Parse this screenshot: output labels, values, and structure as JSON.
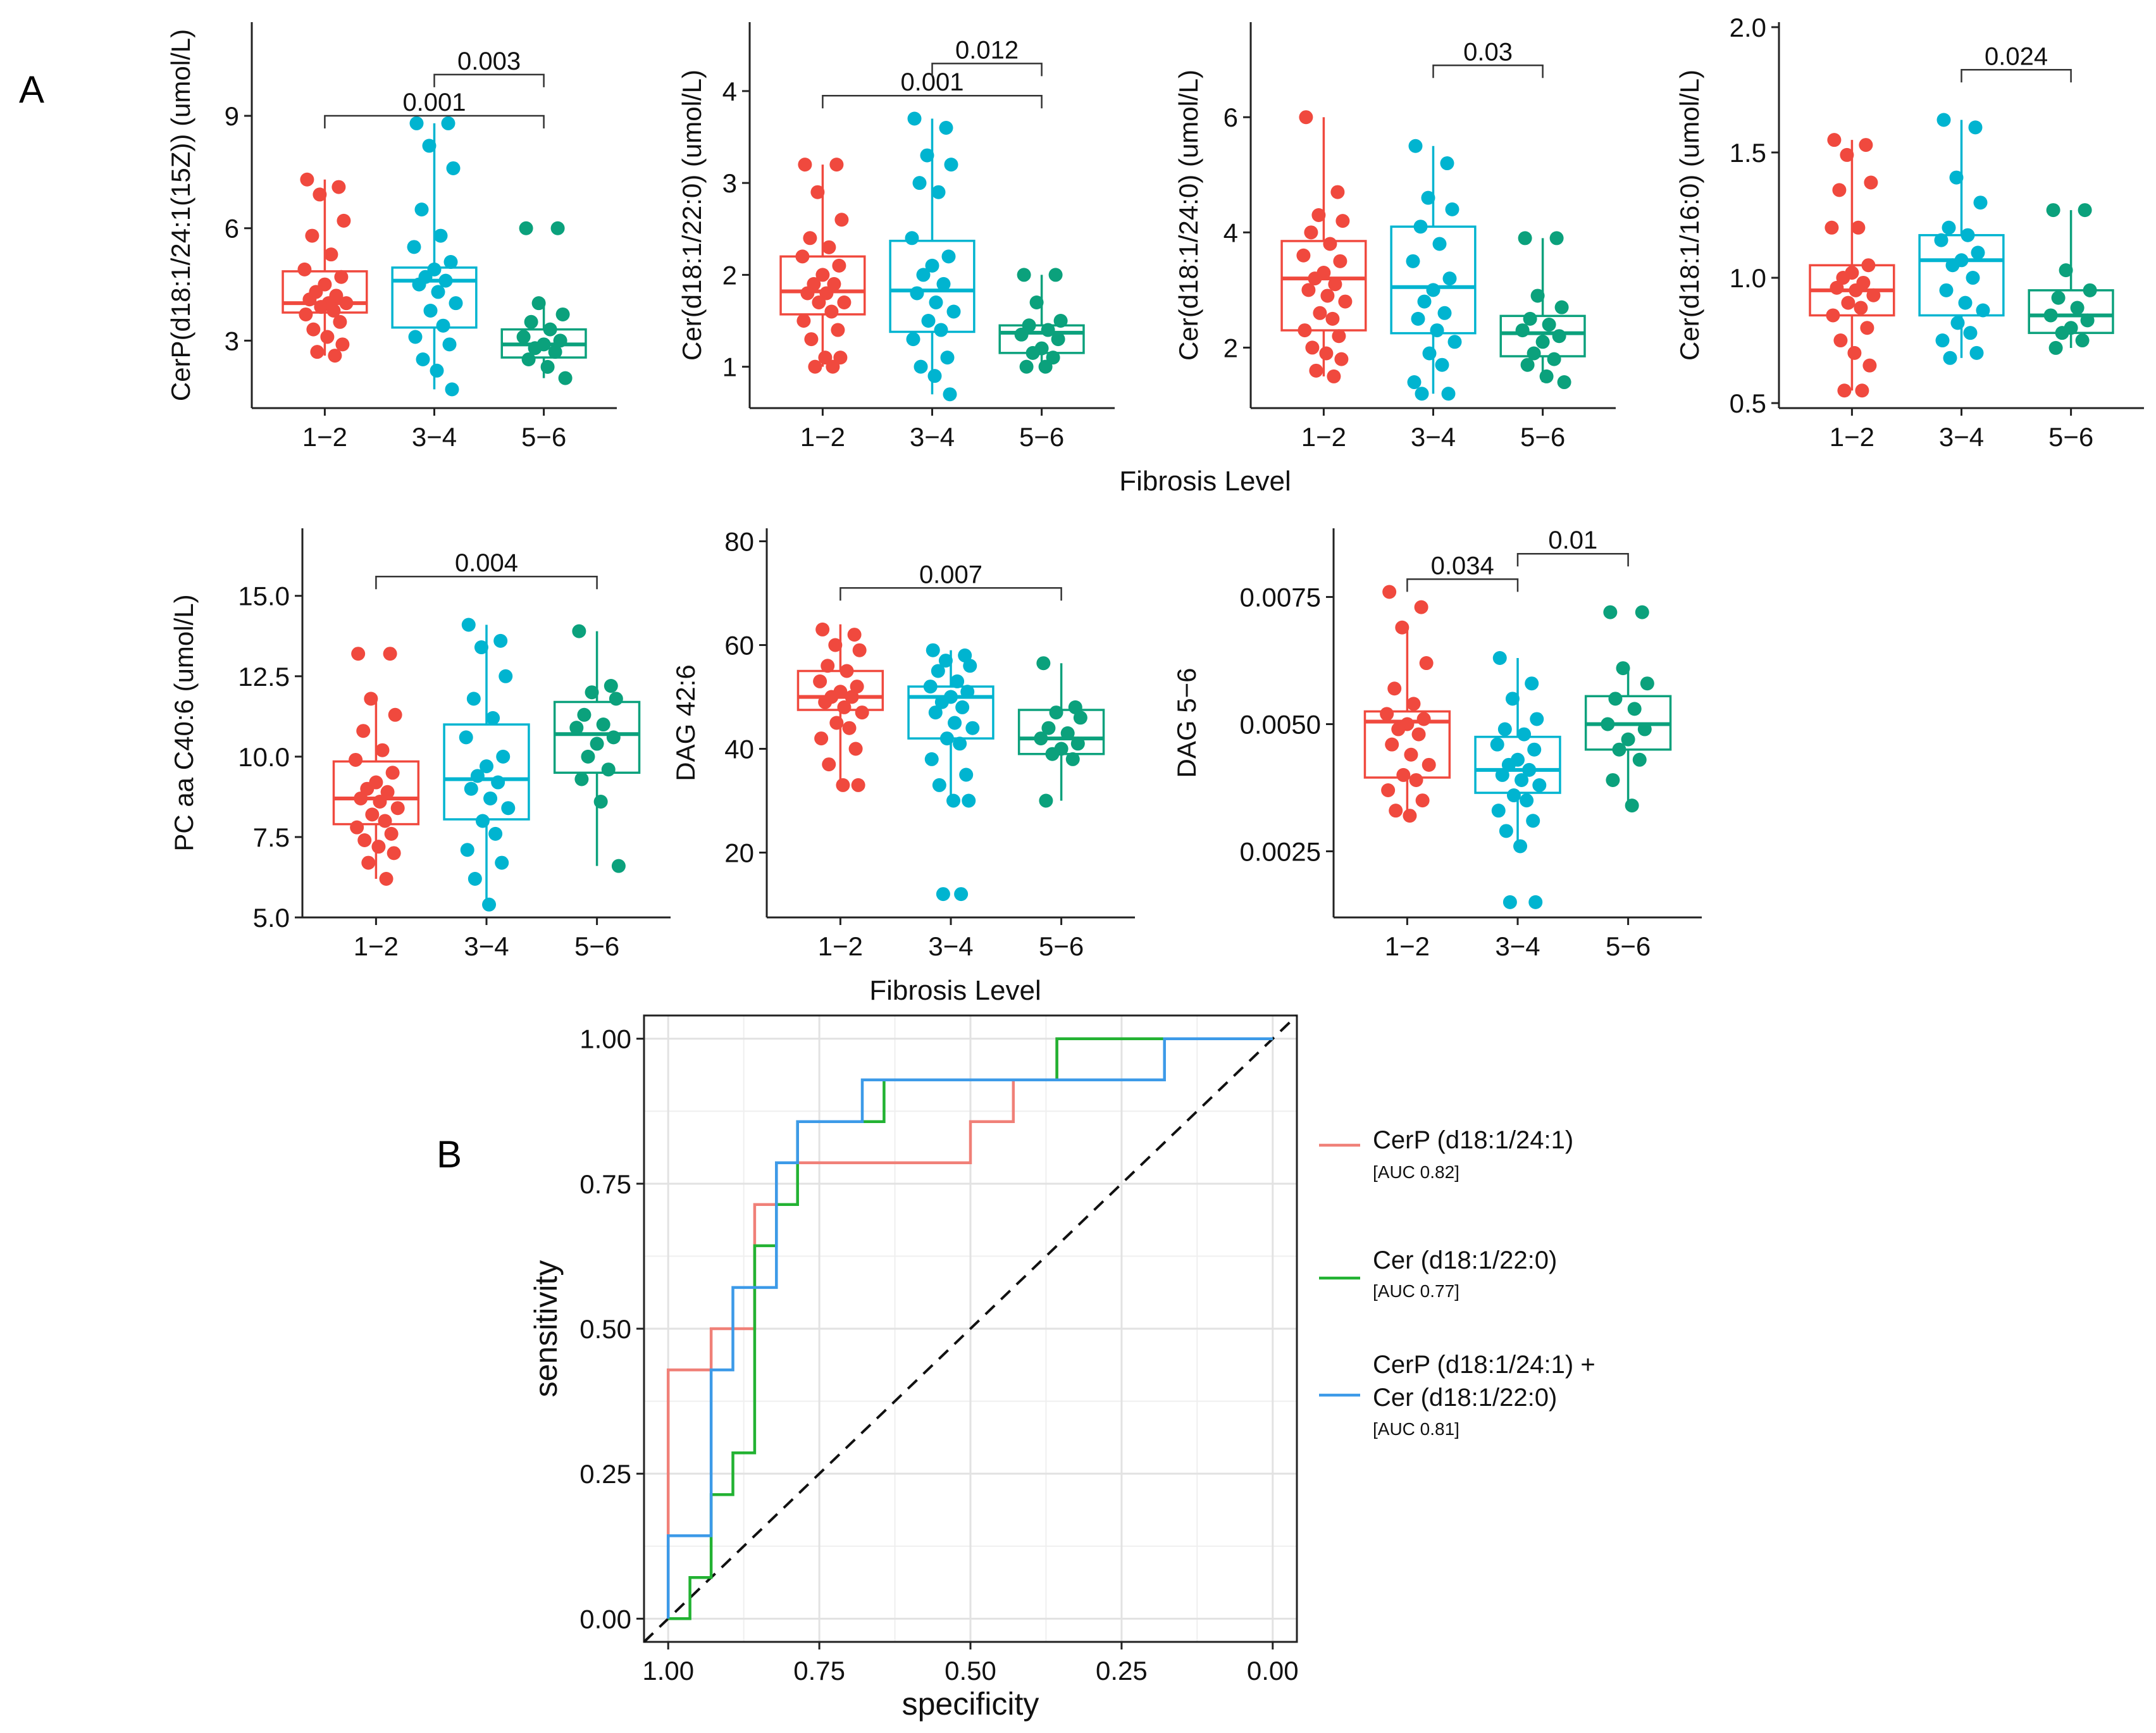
{
  "figure": {
    "panel_a_label": "A",
    "panel_b_label": "B"
  },
  "colors": {
    "group_1_2": "#F0493E",
    "group_3_4": "#00B4D0",
    "group_5_6": "#0BA17C",
    "roc_cerp": "#F08078",
    "roc_cer": "#22B232",
    "roc_combined": "#3C9AE8"
  },
  "chart_data": [
    {
      "type": "box",
      "ylabel": "CerP(d18:1/24:1(15Z)) (umol/L)",
      "xlabel": "",
      "categories": [
        "1−2",
        "3−4",
        "5−6"
      ],
      "ylim": [
        1.2,
        11.5
      ],
      "yticks": [
        3,
        6,
        9
      ],
      "ytick_labels": [
        "3",
        "6",
        "9"
      ],
      "boxes": [
        {
          "min": 2.6,
          "q1": 3.75,
          "median": 4.0,
          "q3": 4.85,
          "max": 7.3
        },
        {
          "min": 1.7,
          "q1": 3.35,
          "median": 4.6,
          "q3": 4.95,
          "max": 8.8
        },
        {
          "min": 2.0,
          "q1": 2.55,
          "median": 2.9,
          "q3": 3.3,
          "max": 4.1
        }
      ],
      "points": [
        [
          7.3,
          7.1,
          6.9,
          6.2,
          5.8,
          5.3,
          4.9,
          4.7,
          4.5,
          4.3,
          4.2,
          4.1,
          4.0,
          4.0,
          3.9,
          3.8,
          3.7,
          3.5,
          3.3,
          3.1,
          2.9,
          2.7,
          2.6
        ],
        [
          8.8,
          8.8,
          8.2,
          7.6,
          6.5,
          5.8,
          5.5,
          5.1,
          4.9,
          4.7,
          4.6,
          4.5,
          4.3,
          4.0,
          3.8,
          3.4,
          3.1,
          2.9,
          2.5,
          2.2,
          1.7
        ],
        [
          6.0,
          6.0,
          4.0,
          3.7,
          3.5,
          3.3,
          3.1,
          3.0,
          2.9,
          2.8,
          2.7,
          2.5,
          2.3,
          2.0
        ]
      ],
      "comparisons": [
        {
          "from": 0,
          "to": 2,
          "label": "0.001",
          "y": 9.0
        },
        {
          "from": 1,
          "to": 2,
          "label": "0.003",
          "y": 10.1
        }
      ]
    },
    {
      "type": "box",
      "ylabel": "Cer(d18:1/22:0) (umol/L)",
      "xlabel": "",
      "categories": [
        "1−2",
        "3−4",
        "5−6"
      ],
      "ylim": [
        0.55,
        4.75
      ],
      "yticks": [
        1,
        2,
        3,
        4
      ],
      "ytick_labels": [
        "1",
        "2",
        "3",
        "4"
      ],
      "boxes": [
        {
          "min": 1.0,
          "q1": 1.57,
          "median": 1.82,
          "q3": 2.2,
          "max": 3.2
        },
        {
          "min": 0.7,
          "q1": 1.38,
          "median": 1.83,
          "q3": 2.37,
          "max": 3.7
        },
        {
          "min": 1.0,
          "q1": 1.15,
          "median": 1.37,
          "q3": 1.45,
          "max": 2.0
        }
      ],
      "points": [
        [
          3.2,
          3.2,
          2.9,
          2.6,
          2.4,
          2.3,
          2.2,
          2.1,
          2.0,
          1.9,
          1.9,
          1.8,
          1.8,
          1.7,
          1.7,
          1.6,
          1.5,
          1.4,
          1.3,
          1.1,
          1.1,
          1.0,
          1.0
        ],
        [
          3.7,
          3.6,
          3.3,
          3.2,
          3.0,
          2.9,
          2.4,
          2.2,
          2.1,
          2.0,
          1.9,
          1.8,
          1.7,
          1.6,
          1.5,
          1.4,
          1.3,
          1.1,
          1.0,
          0.9,
          0.7
        ],
        [
          2.0,
          2.0,
          1.7,
          1.5,
          1.45,
          1.4,
          1.35,
          1.3,
          1.2,
          1.15,
          1.1,
          1.0,
          1.0
        ]
      ],
      "comparisons": [
        {
          "from": 0,
          "to": 2,
          "label": "0.001",
          "y": 3.95
        },
        {
          "from": 1,
          "to": 2,
          "label": "0.012",
          "y": 4.3
        }
      ]
    },
    {
      "type": "box",
      "ylabel": "Cer(d18:1/24:0) (umol/L)",
      "xlabel": "",
      "categories": [
        "1−2",
        "3−4",
        "5−6"
      ],
      "ylim": [
        0.95,
        7.65
      ],
      "yticks": [
        2,
        4,
        6
      ],
      "ytick_labels": [
        "2",
        "4",
        "6"
      ],
      "boxes": [
        {
          "min": 1.5,
          "q1": 2.3,
          "median": 3.2,
          "q3": 3.85,
          "max": 6.0
        },
        {
          "min": 1.2,
          "q1": 2.25,
          "median": 3.05,
          "q3": 4.1,
          "max": 5.5
        },
        {
          "min": 1.4,
          "q1": 1.85,
          "median": 2.25,
          "q3": 2.55,
          "max": 3.9
        }
      ],
      "points": [
        [
          6.0,
          4.7,
          4.3,
          4.2,
          4.0,
          3.8,
          3.6,
          3.5,
          3.3,
          3.2,
          3.1,
          3.0,
          2.9,
          2.8,
          2.6,
          2.5,
          2.3,
          2.2,
          2.0,
          1.9,
          1.8,
          1.6,
          1.5
        ],
        [
          5.5,
          5.2,
          4.6,
          4.4,
          4.1,
          3.8,
          3.5,
          3.2,
          3.0,
          2.8,
          2.6,
          2.5,
          2.3,
          2.1,
          1.9,
          1.7,
          1.4,
          1.2,
          1.2
        ],
        [
          3.9,
          3.9,
          2.9,
          2.7,
          2.5,
          2.4,
          2.3,
          2.2,
          2.1,
          1.9,
          1.8,
          1.7,
          1.5,
          1.4
        ]
      ],
      "comparisons": [
        {
          "from": 1,
          "to": 2,
          "label": "0.03",
          "y": 6.9
        }
      ]
    },
    {
      "type": "box",
      "ylabel": "Cer(d18:1/16:0) (umol/L)",
      "xlabel": "",
      "categories": [
        "1−2",
        "3−4",
        "5−6"
      ],
      "ylim": [
        0.48,
        2.02
      ],
      "yticks": [
        0.5,
        1.0,
        1.5,
        2.0
      ],
      "ytick_labels": [
        "0.5",
        "1.0",
        "1.5",
        "2.0"
      ],
      "boxes": [
        {
          "min": 0.55,
          "q1": 0.85,
          "median": 0.95,
          "q3": 1.05,
          "max": 1.55
        },
        {
          "min": 0.68,
          "q1": 0.85,
          "median": 1.07,
          "q3": 1.17,
          "max": 1.63
        },
        {
          "min": 0.72,
          "q1": 0.78,
          "median": 0.85,
          "q3": 0.95,
          "max": 1.27
        }
      ],
      "points": [
        [
          1.55,
          1.53,
          1.49,
          1.38,
          1.35,
          1.2,
          1.2,
          1.05,
          1.02,
          1.0,
          0.98,
          0.96,
          0.95,
          0.93,
          0.9,
          0.88,
          0.85,
          0.8,
          0.75,
          0.7,
          0.65,
          0.55,
          0.55
        ],
        [
          1.63,
          1.6,
          1.4,
          1.3,
          1.2,
          1.17,
          1.15,
          1.1,
          1.07,
          1.05,
          1.0,
          0.95,
          0.9,
          0.87,
          0.82,
          0.78,
          0.75,
          0.7,
          0.68
        ],
        [
          1.27,
          1.27,
          1.03,
          0.95,
          0.92,
          0.88,
          0.85,
          0.83,
          0.8,
          0.78,
          0.75,
          0.72
        ]
      ],
      "comparisons": [
        {
          "from": 1,
          "to": 2,
          "label": "0.024",
          "y": 1.83
        }
      ]
    },
    {
      "type": "box",
      "ylabel": "PC aa C40:6 (umol/L)",
      "xlabel": "",
      "categories": [
        "1−2",
        "3−4",
        "5−6"
      ],
      "ylim": [
        5.0,
        17.1
      ],
      "yticks": [
        5.0,
        7.5,
        10.0,
        12.5,
        15.0
      ],
      "ytick_labels": [
        "5.0",
        "7.5",
        "10.0",
        "12.5",
        "15.0"
      ],
      "boxes": [
        {
          "min": 6.2,
          "q1": 7.9,
          "median": 8.7,
          "q3": 9.85,
          "max": 11.9
        },
        {
          "min": 5.4,
          "q1": 8.05,
          "median": 9.3,
          "q3": 11.0,
          "max": 14.1
        },
        {
          "min": 6.6,
          "q1": 9.5,
          "median": 10.7,
          "q3": 11.7,
          "max": 13.9
        }
      ],
      "points": [
        [
          13.2,
          13.2,
          11.8,
          11.3,
          10.8,
          10.2,
          9.9,
          9.5,
          9.2,
          9.0,
          8.9,
          8.7,
          8.6,
          8.4,
          8.2,
          8.0,
          7.8,
          7.6,
          7.4,
          7.2,
          7.0,
          6.7,
          6.2
        ],
        [
          14.1,
          13.6,
          13.4,
          12.5,
          11.8,
          11.2,
          10.6,
          10.0,
          9.7,
          9.4,
          9.2,
          9.0,
          8.7,
          8.4,
          8.0,
          7.6,
          7.1,
          6.7,
          6.2,
          5.4
        ],
        [
          13.9,
          12.2,
          12.0,
          11.8,
          11.3,
          11.0,
          10.9,
          10.6,
          10.4,
          10.0,
          9.6,
          9.3,
          8.6,
          6.6
        ]
      ],
      "comparisons": [
        {
          "from": 0,
          "to": 2,
          "label": "0.004",
          "y": 15.6
        }
      ]
    },
    {
      "type": "box",
      "ylabel": "DAG 42:6",
      "xlabel": "",
      "categories": [
        "1−2",
        "3−4",
        "5−6"
      ],
      "ylim": [
        7.5,
        82.5
      ],
      "yticks": [
        20,
        40,
        60,
        80
      ],
      "ytick_labels": [
        "20",
        "40",
        "60",
        "80"
      ],
      "boxes": [
        {
          "min": 33,
          "q1": 47.5,
          "median": 50,
          "q3": 55,
          "max": 64
        },
        {
          "min": 30,
          "q1": 42,
          "median": 50,
          "q3": 52,
          "max": 59
        },
        {
          "min": 30,
          "q1": 39,
          "median": 42,
          "q3": 47.5,
          "max": 56.5
        }
      ],
      "points": [
        [
          63,
          62,
          60,
          59,
          56,
          55,
          53,
          52,
          51,
          50,
          50,
          49,
          48,
          47,
          45,
          44,
          42,
          40,
          37,
          33,
          33
        ],
        [
          59,
          58,
          57,
          56,
          55,
          53,
          52,
          51,
          50,
          49,
          48,
          47,
          45,
          44,
          42,
          41,
          38,
          35,
          33,
          30,
          30,
          12,
          12
        ],
        [
          56.5,
          48,
          47,
          46,
          44,
          43,
          42,
          41,
          40,
          39,
          38,
          30
        ]
      ],
      "comparisons": [
        {
          "from": 0,
          "to": 2,
          "label": "0.007",
          "y": 71
        }
      ]
    },
    {
      "type": "box",
      "ylabel": "DAG 5−6",
      "xlabel": "",
      "categories": [
        "1−2",
        "3−4",
        "5−6"
      ],
      "ylim": [
        0.0012,
        0.00885
      ],
      "yticks": [
        0.0025,
        0.005,
        0.0075
      ],
      "ytick_labels": [
        "0.0025",
        "0.0050",
        "0.0075"
      ],
      "boxes": [
        {
          "min": 0.00315,
          "q1": 0.00395,
          "median": 0.00505,
          "q3": 0.00525,
          "max": 0.0069
        },
        {
          "min": 0.0026,
          "q1": 0.00365,
          "median": 0.0041,
          "q3": 0.00475,
          "max": 0.0063
        },
        {
          "min": 0.0034,
          "q1": 0.0045,
          "median": 0.005,
          "q3": 0.00555,
          "max": 0.0061
        }
      ],
      "points": [
        [
          0.0076,
          0.0073,
          0.0069,
          0.0062,
          0.0057,
          0.0054,
          0.0052,
          0.0051,
          0.005,
          0.0049,
          0.0048,
          0.0046,
          0.0044,
          0.0042,
          0.004,
          0.0039,
          0.0037,
          0.0035,
          0.0033,
          0.0032
        ],
        [
          0.0063,
          0.0058,
          0.0055,
          0.0051,
          0.0049,
          0.0048,
          0.0046,
          0.0045,
          0.0043,
          0.0042,
          0.0041,
          0.004,
          0.0039,
          0.0038,
          0.0036,
          0.0035,
          0.0033,
          0.0031,
          0.0029,
          0.0026,
          0.0015,
          0.0015
        ],
        [
          0.0072,
          0.0072,
          0.0061,
          0.0058,
          0.0055,
          0.0053,
          0.005,
          0.0049,
          0.0047,
          0.0045,
          0.0043,
          0.0039,
          0.0034
        ]
      ],
      "comparisons": [
        {
          "from": 0,
          "to": 1,
          "label": "0.034",
          "y": 0.00785
        },
        {
          "from": 1,
          "to": 2,
          "label": "0.01",
          "y": 0.00835
        }
      ]
    },
    {
      "type": "line",
      "title": "",
      "xlabel": "specificity",
      "ylabel": "sensitivity",
      "xlim": [
        1.04,
        -0.04
      ],
      "ylim": [
        -0.04,
        1.04
      ],
      "x_reversed": true,
      "xticks": [
        1.0,
        0.75,
        0.5,
        0.25,
        0.0
      ],
      "xtick_labels": [
        "1.00",
        "0.75",
        "0.50",
        "0.25",
        "0.00"
      ],
      "yticks": [
        0.0,
        0.25,
        0.5,
        0.75,
        1.0
      ],
      "ytick_labels": [
        "0.00",
        "0.25",
        "0.50",
        "0.75",
        "1.00"
      ],
      "diagonal_reference": true,
      "series": [
        {
          "name": "CerP (d18:1/24:1)",
          "auc_label": "[AUC 0.82]",
          "points": [
            [
              1.0,
              0.0
            ],
            [
              1.0,
              0.143
            ],
            [
              1.0,
              0.429
            ],
            [
              0.929,
              0.429
            ],
            [
              0.929,
              0.5
            ],
            [
              0.857,
              0.5
            ],
            [
              0.857,
              0.714
            ],
            [
              0.821,
              0.714
            ],
            [
              0.821,
              0.786
            ],
            [
              0.5,
              0.786
            ],
            [
              0.5,
              0.857
            ],
            [
              0.429,
              0.857
            ],
            [
              0.429,
              0.929
            ],
            [
              0.357,
              0.929
            ],
            [
              0.357,
              1.0
            ],
            [
              0.0,
              1.0
            ]
          ]
        },
        {
          "name": "Cer (d18:1/22:0)",
          "auc_label": "[AUC 0.77]",
          "points": [
            [
              1.0,
              0.0
            ],
            [
              0.964,
              0.0
            ],
            [
              0.964,
              0.071
            ],
            [
              0.929,
              0.071
            ],
            [
              0.929,
              0.214
            ],
            [
              0.893,
              0.214
            ],
            [
              0.893,
              0.286
            ],
            [
              0.857,
              0.286
            ],
            [
              0.857,
              0.643
            ],
            [
              0.821,
              0.643
            ],
            [
              0.821,
              0.714
            ],
            [
              0.786,
              0.714
            ],
            [
              0.786,
              0.857
            ],
            [
              0.643,
              0.857
            ],
            [
              0.643,
              0.929
            ],
            [
              0.357,
              0.929
            ],
            [
              0.357,
              1.0
            ],
            [
              0.0,
              1.0
            ]
          ]
        },
        {
          "name_line1": "CerP (d18:1/24:1) +",
          "name_line2": "Cer (d18:1/22:0)",
          "auc_label": "[AUC 0.81]",
          "points": [
            [
              1.0,
              0.0
            ],
            [
              1.0,
              0.143
            ],
            [
              0.929,
              0.143
            ],
            [
              0.929,
              0.429
            ],
            [
              0.893,
              0.429
            ],
            [
              0.893,
              0.571
            ],
            [
              0.821,
              0.571
            ],
            [
              0.821,
              0.786
            ],
            [
              0.786,
              0.786
            ],
            [
              0.786,
              0.857
            ],
            [
              0.679,
              0.857
            ],
            [
              0.679,
              0.929
            ],
            [
              0.179,
              0.929
            ],
            [
              0.179,
              1.0
            ],
            [
              0.0,
              1.0
            ]
          ]
        }
      ]
    }
  ],
  "shared_xlabels": {
    "row1": "Fibrosis Level",
    "row2": "Fibrosis Level"
  }
}
